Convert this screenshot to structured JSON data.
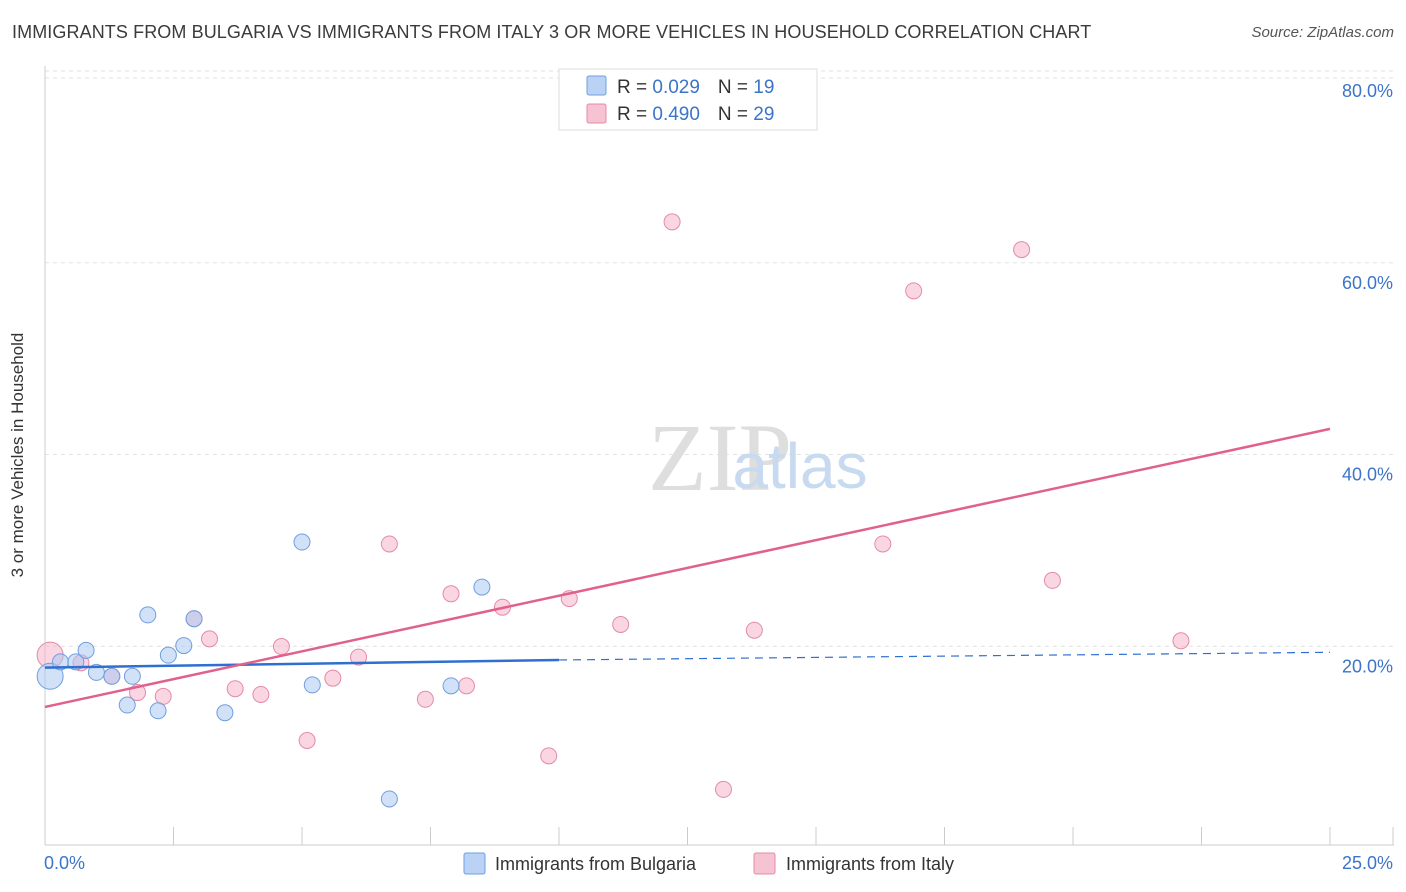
{
  "chart_data": {
    "type": "scatter",
    "title": "IMMIGRANTS FROM BULGARIA VS IMMIGRANTS FROM ITALY 3 OR MORE VEHICLES IN HOUSEHOLD CORRELATION CHART",
    "source": "Source: ZipAtlas.com",
    "xlabel": "",
    "ylabel": "3 or more Vehicles in Household",
    "xlim": [
      0,
      25
    ],
    "ylim": [
      0,
      80
    ],
    "x_tick_labels": [
      "0.0%",
      "25.0%"
    ],
    "y_ticks": [
      20,
      40,
      60,
      80
    ],
    "y_tick_labels": [
      "20.0%",
      "40.0%",
      "60.0%",
      "80.0%"
    ],
    "legend": [
      {
        "name": "Immigrants from Bulgaria",
        "color": "#a9c8f3"
      },
      {
        "name": "Immigrants from Italy",
        "color": "#f4b4c8"
      }
    ],
    "stats": [
      {
        "r_label": "R = ",
        "r": "0.029",
        "n_label": "N = ",
        "n": "19"
      },
      {
        "r_label": "R = ",
        "r": "0.490",
        "n_label": "N = ",
        "n": "29"
      }
    ],
    "series": [
      {
        "name": "Immigrants from Bulgaria",
        "color": "#a9c8f3",
        "stroke": "#6f9fdf",
        "line_color": "#2f6fcf",
        "trend": {
          "x0": 0,
          "y0": 18.5,
          "x1": 10,
          "y1": 19.3,
          "dash_to_x": 25,
          "dash_to_y": 20.1
        },
        "points": [
          {
            "x": 0.1,
            "y": 17.6,
            "big": true
          },
          {
            "x": 0.3,
            "y": 19.1
          },
          {
            "x": 0.6,
            "y": 19.1
          },
          {
            "x": 0.8,
            "y": 20.3
          },
          {
            "x": 1.0,
            "y": 18.0
          },
          {
            "x": 1.3,
            "y": 17.6
          },
          {
            "x": 1.6,
            "y": 14.6
          },
          {
            "x": 1.7,
            "y": 17.6
          },
          {
            "x": 2.0,
            "y": 24.0
          },
          {
            "x": 2.2,
            "y": 14.0
          },
          {
            "x": 2.4,
            "y": 19.8
          },
          {
            "x": 2.7,
            "y": 20.8
          },
          {
            "x": 2.9,
            "y": 23.6
          },
          {
            "x": 3.5,
            "y": 13.8
          },
          {
            "x": 5.0,
            "y": 31.6
          },
          {
            "x": 5.2,
            "y": 16.7
          },
          {
            "x": 6.7,
            "y": 4.8
          },
          {
            "x": 7.9,
            "y": 16.6
          },
          {
            "x": 8.5,
            "y": 26.9
          }
        ]
      },
      {
        "name": "Immigrants from Italy",
        "color": "#f4b4c8",
        "stroke": "#e58aa8",
        "line_color": "#e0608e",
        "trend": {
          "x0": 0,
          "y0": 14.4,
          "x1": 25,
          "y1": 43.4
        },
        "points": [
          {
            "x": 0.1,
            "y": 19.8,
            "big": true
          },
          {
            "x": 0.7,
            "y": 19.0
          },
          {
            "x": 1.3,
            "y": 17.6
          },
          {
            "x": 1.8,
            "y": 15.9
          },
          {
            "x": 2.3,
            "y": 15.5
          },
          {
            "x": 2.9,
            "y": 23.6
          },
          {
            "x": 3.2,
            "y": 21.5
          },
          {
            "x": 3.7,
            "y": 16.3
          },
          {
            "x": 4.2,
            "y": 15.7
          },
          {
            "x": 4.6,
            "y": 20.7
          },
          {
            "x": 5.1,
            "y": 10.9
          },
          {
            "x": 5.6,
            "y": 17.4
          },
          {
            "x": 6.1,
            "y": 19.6
          },
          {
            "x": 6.7,
            "y": 31.4
          },
          {
            "x": 7.4,
            "y": 15.2
          },
          {
            "x": 7.9,
            "y": 26.2
          },
          {
            "x": 8.2,
            "y": 16.6
          },
          {
            "x": 8.9,
            "y": 24.8
          },
          {
            "x": 9.8,
            "y": 9.3
          },
          {
            "x": 10.2,
            "y": 25.7
          },
          {
            "x": 11.2,
            "y": 23.0
          },
          {
            "x": 12.2,
            "y": 65.0
          },
          {
            "x": 13.2,
            "y": 5.8
          },
          {
            "x": 13.8,
            "y": 22.4
          },
          {
            "x": 16.3,
            "y": 31.4
          },
          {
            "x": 16.9,
            "y": 57.8
          },
          {
            "x": 19.0,
            "y": 62.1
          },
          {
            "x": 19.6,
            "y": 27.6
          },
          {
            "x": 22.1,
            "y": 21.3
          }
        ]
      }
    ]
  }
}
